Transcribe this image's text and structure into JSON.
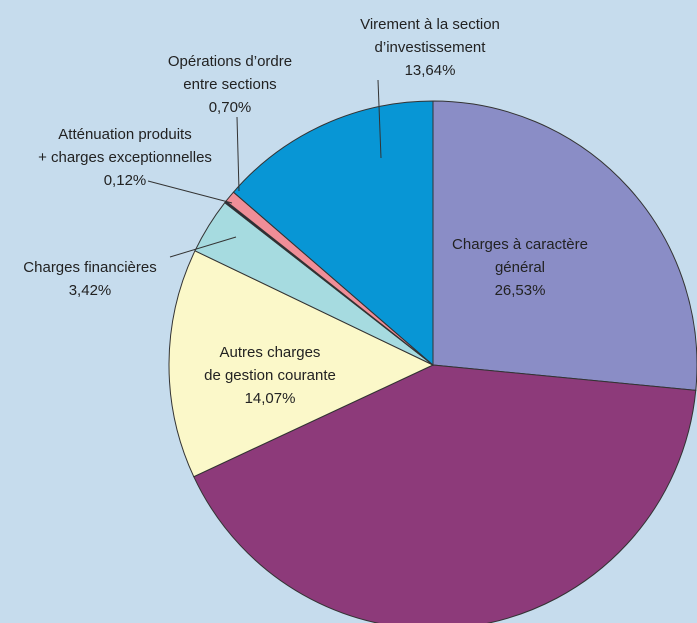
{
  "chart_data": {
    "type": "pie",
    "categories": [
      "Charges à caractère\ngénéral",
      null,
      "Autres charges\nde gestion courante",
      "Charges financières",
      "Atténuation produits\n+ charges exceptionnelles",
      "Opérations d’ordre\nentre sections",
      "Virement à la section\nd’investissement"
    ],
    "values": [
      26.53,
      41.52,
      14.07,
      3.42,
      0.12,
      0.7,
      13.64
    ],
    "value_labels": [
      "26,53%",
      null,
      "14,07%",
      "3,42%",
      "0,12%",
      "0,70%",
      "13,64%"
    ],
    "colors": [
      "#8a8dc6",
      "#8d3a7a",
      "#fbf8c9",
      "#a6dbe0",
      "#2a2a3a",
      "#f08e98",
      "#0896d5"
    ]
  }
}
